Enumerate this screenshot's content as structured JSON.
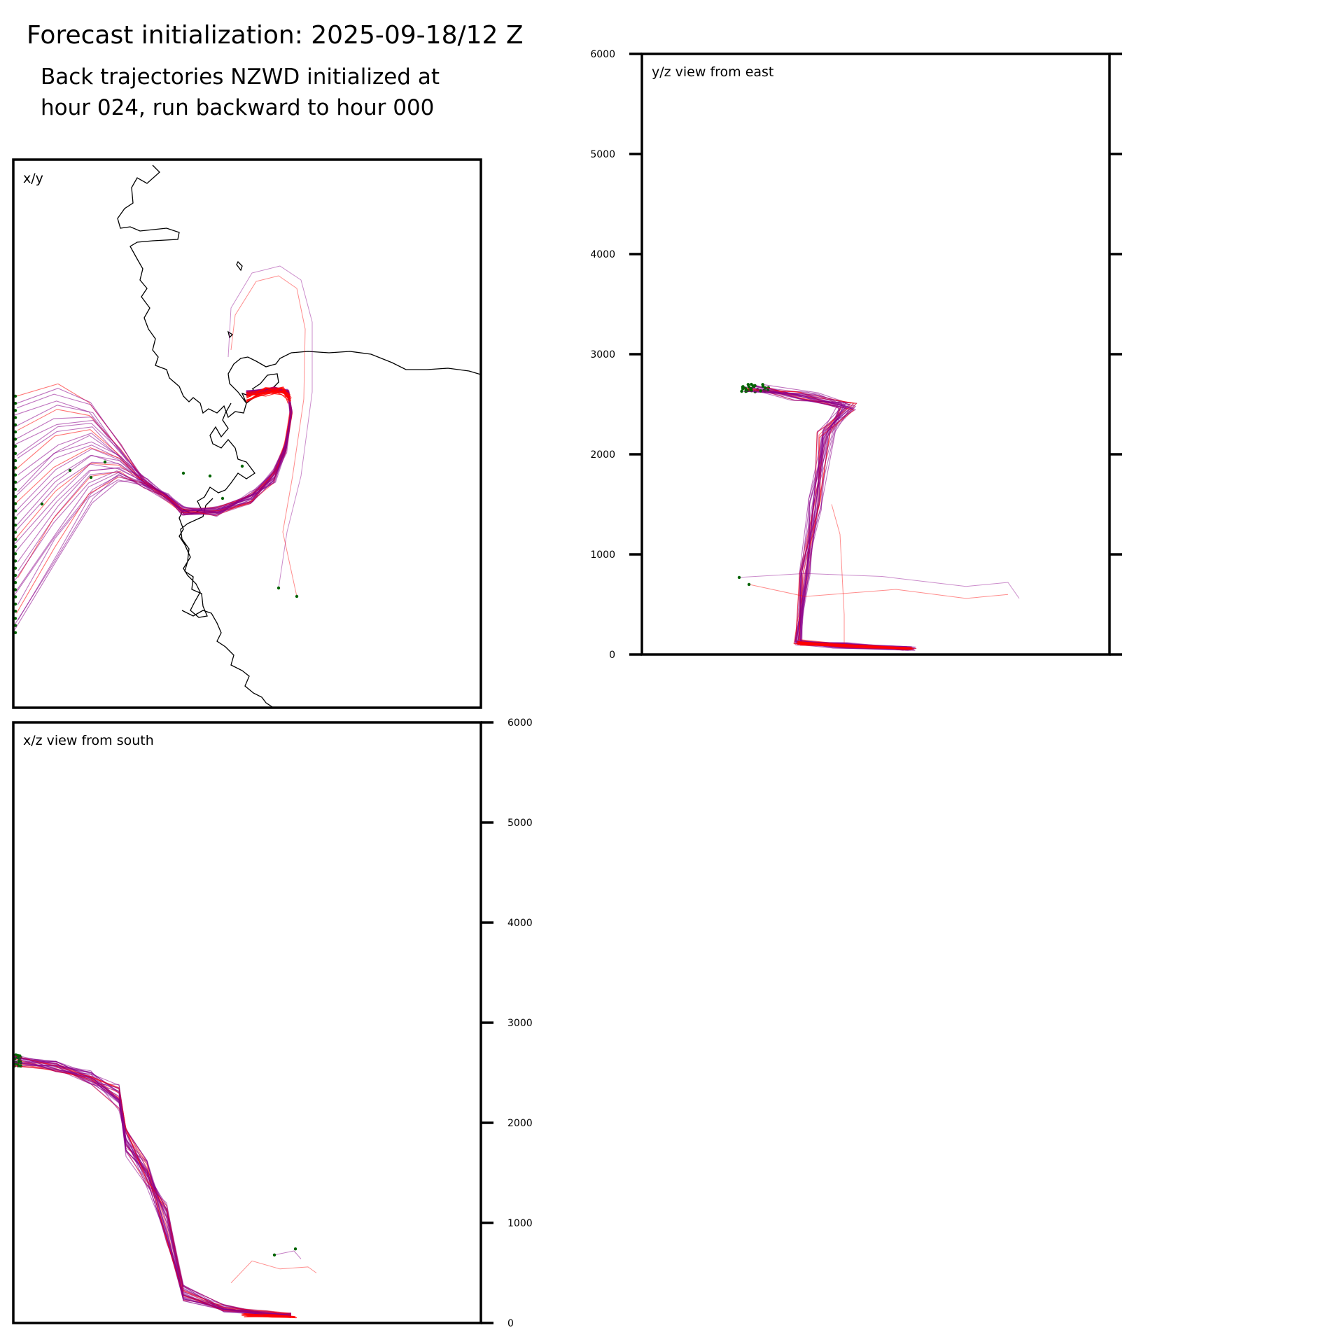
{
  "figure": {
    "title": "Forecast initialization: 2025-09-18/12 Z",
    "subtitle_line1": "Back trajectories NZWD initialized at",
    "subtitle_line2": "hour 024, run backward to hour 000"
  },
  "colors": {
    "early_hours": "#ff0000",
    "late_hours": "#8b008b",
    "endpoint_marker": "#006400",
    "coastline": "#000000"
  },
  "chart_data": [
    {
      "type": "line",
      "panel": "xy",
      "panel_label": "x/y",
      "description_axes": "horizontal map projection, no tick labels",
      "legend": "none",
      "grid": false
    },
    {
      "type": "line",
      "panel": "yz",
      "panel_label": "y/z view from east",
      "ylabel": "",
      "ylim": [
        0,
        6000
      ],
      "yticks": [
        "0",
        "1000",
        "2000",
        "3000",
        "4000",
        "5000",
        "6000"
      ],
      "grid": false
    },
    {
      "type": "line",
      "panel": "xz",
      "panel_label": "x/z view from south",
      "ylabel": "",
      "ylim": [
        0,
        6000
      ],
      "yticks": [
        "0",
        "1000",
        "2000",
        "3000",
        "4000",
        "5000",
        "6000"
      ],
      "grid": false
    }
  ]
}
